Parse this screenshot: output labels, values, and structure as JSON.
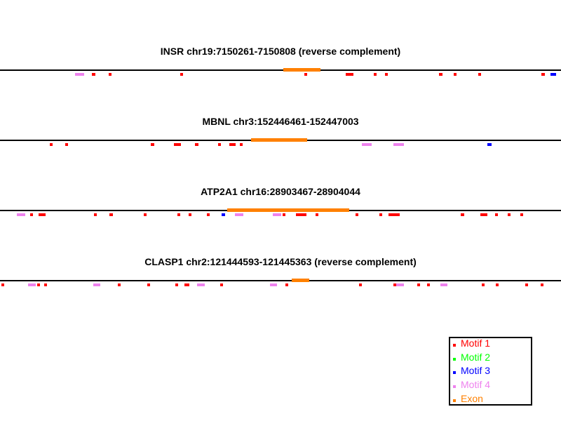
{
  "diagram": {
    "sequence_units": "bp",
    "tracks": [
      {
        "title": "INSR chr19:7150261-7150808 (reverse complement)",
        "length": 548,
        "exon": [
          277,
          313
        ],
        "motifs": [
          {
            "motif": 4,
            "start": 73,
            "end": 82
          },
          {
            "motif": 1,
            "start": 90,
            "end": 93
          },
          {
            "motif": 1,
            "start": 106,
            "end": 109
          },
          {
            "motif": 1,
            "start": 176,
            "end": 179
          },
          {
            "motif": 1,
            "start": 297,
            "end": 300
          },
          {
            "motif": 1,
            "start": 338,
            "end": 345
          },
          {
            "motif": 1,
            "start": 365,
            "end": 368
          },
          {
            "motif": 1,
            "start": 376,
            "end": 379
          },
          {
            "motif": 1,
            "start": 429,
            "end": 432
          },
          {
            "motif": 1,
            "start": 443,
            "end": 446
          },
          {
            "motif": 1,
            "start": 467,
            "end": 470
          },
          {
            "motif": 1,
            "start": 529,
            "end": 532
          },
          {
            "motif": 3,
            "start": 538,
            "end": 543
          }
        ]
      },
      {
        "title": "MBNL chr3:152446461-152447003",
        "length": 543,
        "exon": [
          243,
          297
        ],
        "motifs": [
          {
            "motif": 1,
            "start": 48,
            "end": 51
          },
          {
            "motif": 1,
            "start": 63,
            "end": 66
          },
          {
            "motif": 1,
            "start": 146,
            "end": 149
          },
          {
            "motif": 1,
            "start": 168,
            "end": 175
          },
          {
            "motif": 1,
            "start": 189,
            "end": 192
          },
          {
            "motif": 1,
            "start": 211,
            "end": 214
          },
          {
            "motif": 1,
            "start": 222,
            "end": 228
          },
          {
            "motif": 1,
            "start": 232,
            "end": 235
          },
          {
            "motif": 4,
            "start": 350,
            "end": 360
          },
          {
            "motif": 4,
            "start": 381,
            "end": 391
          },
          {
            "motif": 3,
            "start": 472,
            "end": 476
          }
        ]
      },
      {
        "title": "ATP2A1 chr16:28903467-28904044",
        "length": 578,
        "exon": [
          234,
          360
        ],
        "motifs": [
          {
            "motif": 4,
            "start": 17,
            "end": 26
          },
          {
            "motif": 1,
            "start": 31,
            "end": 34
          },
          {
            "motif": 1,
            "start": 40,
            "end": 47
          },
          {
            "motif": 1,
            "start": 97,
            "end": 100
          },
          {
            "motif": 1,
            "start": 113,
            "end": 116
          },
          {
            "motif": 1,
            "start": 148,
            "end": 151
          },
          {
            "motif": 1,
            "start": 183,
            "end": 186
          },
          {
            "motif": 1,
            "start": 194,
            "end": 197
          },
          {
            "motif": 1,
            "start": 213,
            "end": 216
          },
          {
            "motif": 3,
            "start": 228,
            "end": 232
          },
          {
            "motif": 4,
            "start": 242,
            "end": 251
          },
          {
            "motif": 4,
            "start": 281,
            "end": 290
          },
          {
            "motif": 1,
            "start": 291,
            "end": 294
          },
          {
            "motif": 1,
            "start": 305,
            "end": 316
          },
          {
            "motif": 1,
            "start": 325,
            "end": 328
          },
          {
            "motif": 1,
            "start": 366,
            "end": 369
          },
          {
            "motif": 1,
            "start": 391,
            "end": 394
          },
          {
            "motif": 1,
            "start": 400,
            "end": 412
          },
          {
            "motif": 1,
            "start": 475,
            "end": 478
          },
          {
            "motif": 1,
            "start": 495,
            "end": 502
          },
          {
            "motif": 1,
            "start": 510,
            "end": 513
          },
          {
            "motif": 1,
            "start": 523,
            "end": 526
          },
          {
            "motif": 1,
            "start": 536,
            "end": 539
          }
        ]
      },
      {
        "title": "CLASP1 chr2:121444593-121445363 (reverse complement)",
        "length": 771,
        "exon": [
          401,
          425
        ],
        "motifs": [
          {
            "motif": 1,
            "start": 2,
            "end": 5
          },
          {
            "motif": 4,
            "start": 39,
            "end": 49
          },
          {
            "motif": 1,
            "start": 51,
            "end": 54
          },
          {
            "motif": 1,
            "start": 61,
            "end": 64
          },
          {
            "motif": 4,
            "start": 128,
            "end": 138
          },
          {
            "motif": 1,
            "start": 162,
            "end": 165
          },
          {
            "motif": 1,
            "start": 202,
            "end": 205
          },
          {
            "motif": 1,
            "start": 241,
            "end": 244
          },
          {
            "motif": 1,
            "start": 253,
            "end": 260
          },
          {
            "motif": 4,
            "start": 271,
            "end": 281
          },
          {
            "motif": 1,
            "start": 303,
            "end": 306
          },
          {
            "motif": 4,
            "start": 371,
            "end": 381
          },
          {
            "motif": 1,
            "start": 392,
            "end": 395
          },
          {
            "motif": 1,
            "start": 493,
            "end": 496
          },
          {
            "motif": 1,
            "start": 541,
            "end": 544
          },
          {
            "motif": 4,
            "start": 545,
            "end": 555
          },
          {
            "motif": 1,
            "start": 573,
            "end": 576
          },
          {
            "motif": 1,
            "start": 587,
            "end": 590
          },
          {
            "motif": 4,
            "start": 605,
            "end": 615
          },
          {
            "motif": 1,
            "start": 662,
            "end": 665
          },
          {
            "motif": 1,
            "start": 681,
            "end": 684
          },
          {
            "motif": 1,
            "start": 722,
            "end": 725
          },
          {
            "motif": 1,
            "start": 743,
            "end": 746
          }
        ]
      }
    ]
  },
  "legend": {
    "items": [
      {
        "label": "Motif 1",
        "color": "#ff0000"
      },
      {
        "label": "Motif 2",
        "color": "#00ff00"
      },
      {
        "label": "Motif 3",
        "color": "#0000ff"
      },
      {
        "label": "Motif 4",
        "color": "#ee82ee"
      },
      {
        "label": "Exon",
        "color": "#ff8000"
      }
    ]
  }
}
